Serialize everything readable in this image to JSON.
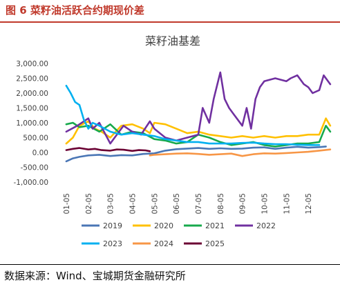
{
  "figure_label": "图 6 菜籽油活跃合约期现价差",
  "source": "数据来源：Wind、宝城期货金融研究所",
  "chart_data": {
    "type": "line",
    "title": "菜籽油基差",
    "categories": [
      "01-05",
      "02-05",
      "03-05",
      "04-05",
      "05-05",
      "06-05",
      "07-05",
      "08-05",
      "09-05",
      "10-05",
      "11-05",
      "12-05"
    ],
    "y_ticks": [
      "3,000.00",
      "2,500.00",
      "2,000.00",
      "1,500.00",
      "1,000.00",
      "500.00",
      "0.00",
      "-500.00",
      "-1,000.00"
    ],
    "ylim": [
      -1000,
      3000
    ],
    "grid": false,
    "legend_position": "bottom",
    "colors": {
      "2019": "#4a76b5",
      "2020": "#ffc000",
      "2021": "#17a94c",
      "2022": "#7030a0",
      "2023": "#00b0f0",
      "2024": "#f79646",
      "2025": "#6b0033"
    },
    "series": [
      {
        "name": "2019",
        "x": [
          0,
          0.3,
          0.6,
          1,
          1.5,
          2,
          2.5,
          3,
          3.5,
          4,
          4.5,
          5,
          5.5,
          6,
          6.5,
          7,
          7.5,
          8,
          8.5,
          9,
          9.5,
          10,
          10.5,
          11,
          11.5,
          11.8
        ],
        "values": [
          -300,
          -200,
          -150,
          -100,
          -80,
          -120,
          -90,
          -100,
          -50,
          -30,
          60,
          110,
          130,
          150,
          120,
          140,
          120,
          130,
          160,
          170,
          120,
          160,
          190,
          160,
          180,
          200
        ]
      },
      {
        "name": "2020",
        "x": [
          0,
          0.3,
          0.6,
          1,
          1.3,
          1.6,
          2,
          2.5,
          3,
          3.5,
          3.8,
          4,
          4.5,
          5,
          5.5,
          6,
          6.5,
          7,
          7.5,
          8,
          8.5,
          9,
          9.5,
          10,
          10.5,
          11,
          11.5,
          11.8,
          12
        ],
        "values": [
          300,
          500,
          900,
          1050,
          800,
          700,
          500,
          900,
          950,
          800,
          650,
          1000,
          950,
          800,
          650,
          700,
          600,
          550,
          500,
          550,
          500,
          550,
          500,
          550,
          550,
          600,
          600,
          1150,
          900
        ]
      },
      {
        "name": "2021",
        "x": [
          0,
          0.3,
          0.6,
          1,
          1.5,
          2,
          2.5,
          3,
          3.5,
          4,
          4.5,
          5,
          5.5,
          6,
          6.5,
          7,
          7.5,
          8,
          8.5,
          9,
          9.5,
          10,
          10.5,
          11,
          11.5,
          11.8,
          12
        ],
        "values": [
          950,
          1000,
          850,
          900,
          700,
          950,
          600,
          700,
          650,
          450,
          400,
          300,
          350,
          600,
          500,
          350,
          250,
          300,
          350,
          250,
          200,
          250,
          300,
          300,
          350,
          900,
          700
        ]
      },
      {
        "name": "2022",
        "x": [
          0,
          0.5,
          1,
          1.2,
          1.5,
          2,
          2.2,
          2.6,
          3,
          3.4,
          3.8,
          4,
          4.5,
          5,
          5.5,
          6,
          6.2,
          6.5,
          6.7,
          7,
          7.2,
          7.4,
          7.6,
          8,
          8.2,
          8.4,
          8.6,
          8.8,
          9,
          9.5,
          10,
          10.2,
          10.5,
          10.8,
          11,
          11.2,
          11.5,
          11.7,
          12
        ],
        "values": [
          700,
          900,
          1150,
          800,
          1000,
          300,
          500,
          900,
          700,
          600,
          1050,
          800,
          500,
          400,
          500,
          600,
          1500,
          1000,
          1800,
          2700,
          1800,
          1500,
          1300,
          900,
          1500,
          800,
          1800,
          2200,
          2400,
          2500,
          2400,
          2500,
          2600,
          2300,
          2200,
          2000,
          2100,
          2600,
          2300
        ]
      },
      {
        "name": "2023",
        "x": [
          0,
          0.2,
          0.4,
          0.6,
          0.8,
          1,
          1.2,
          1.5,
          2,
          2.5,
          3,
          3.5,
          4,
          4.5,
          5,
          5.5,
          6,
          6.5,
          7,
          7.5,
          8,
          8.5,
          9,
          9.5,
          10,
          10.5,
          11,
          11.5
        ],
        "values": [
          2250,
          2000,
          1700,
          1600,
          1100,
          800,
          1000,
          900,
          700,
          600,
          650,
          600,
          550,
          450,
          400,
          350,
          350,
          300,
          300,
          300,
          320,
          330,
          300,
          280,
          280,
          260,
          250,
          250
        ]
      },
      {
        "name": "2024",
        "x": [
          3.8,
          4,
          4.5,
          5,
          5.5,
          6,
          6.5,
          7,
          7.5,
          8,
          8.5,
          9,
          9.5,
          10,
          10.5,
          11,
          11.5,
          12
        ],
        "values": [
          -100,
          -80,
          -60,
          -40,
          -30,
          -50,
          -80,
          -60,
          -40,
          -120,
          -60,
          -30,
          -40,
          -20,
          0,
          20,
          60,
          100
        ]
      },
      {
        "name": "2025",
        "x": [
          0,
          0.3,
          0.6,
          1,
          1.3,
          1.6,
          2,
          2.3,
          2.6,
          3,
          3.3,
          3.6,
          3.8
        ],
        "values": [
          80,
          120,
          150,
          100,
          120,
          80,
          60,
          100,
          90,
          50,
          80,
          70,
          40
        ]
      }
    ]
  }
}
